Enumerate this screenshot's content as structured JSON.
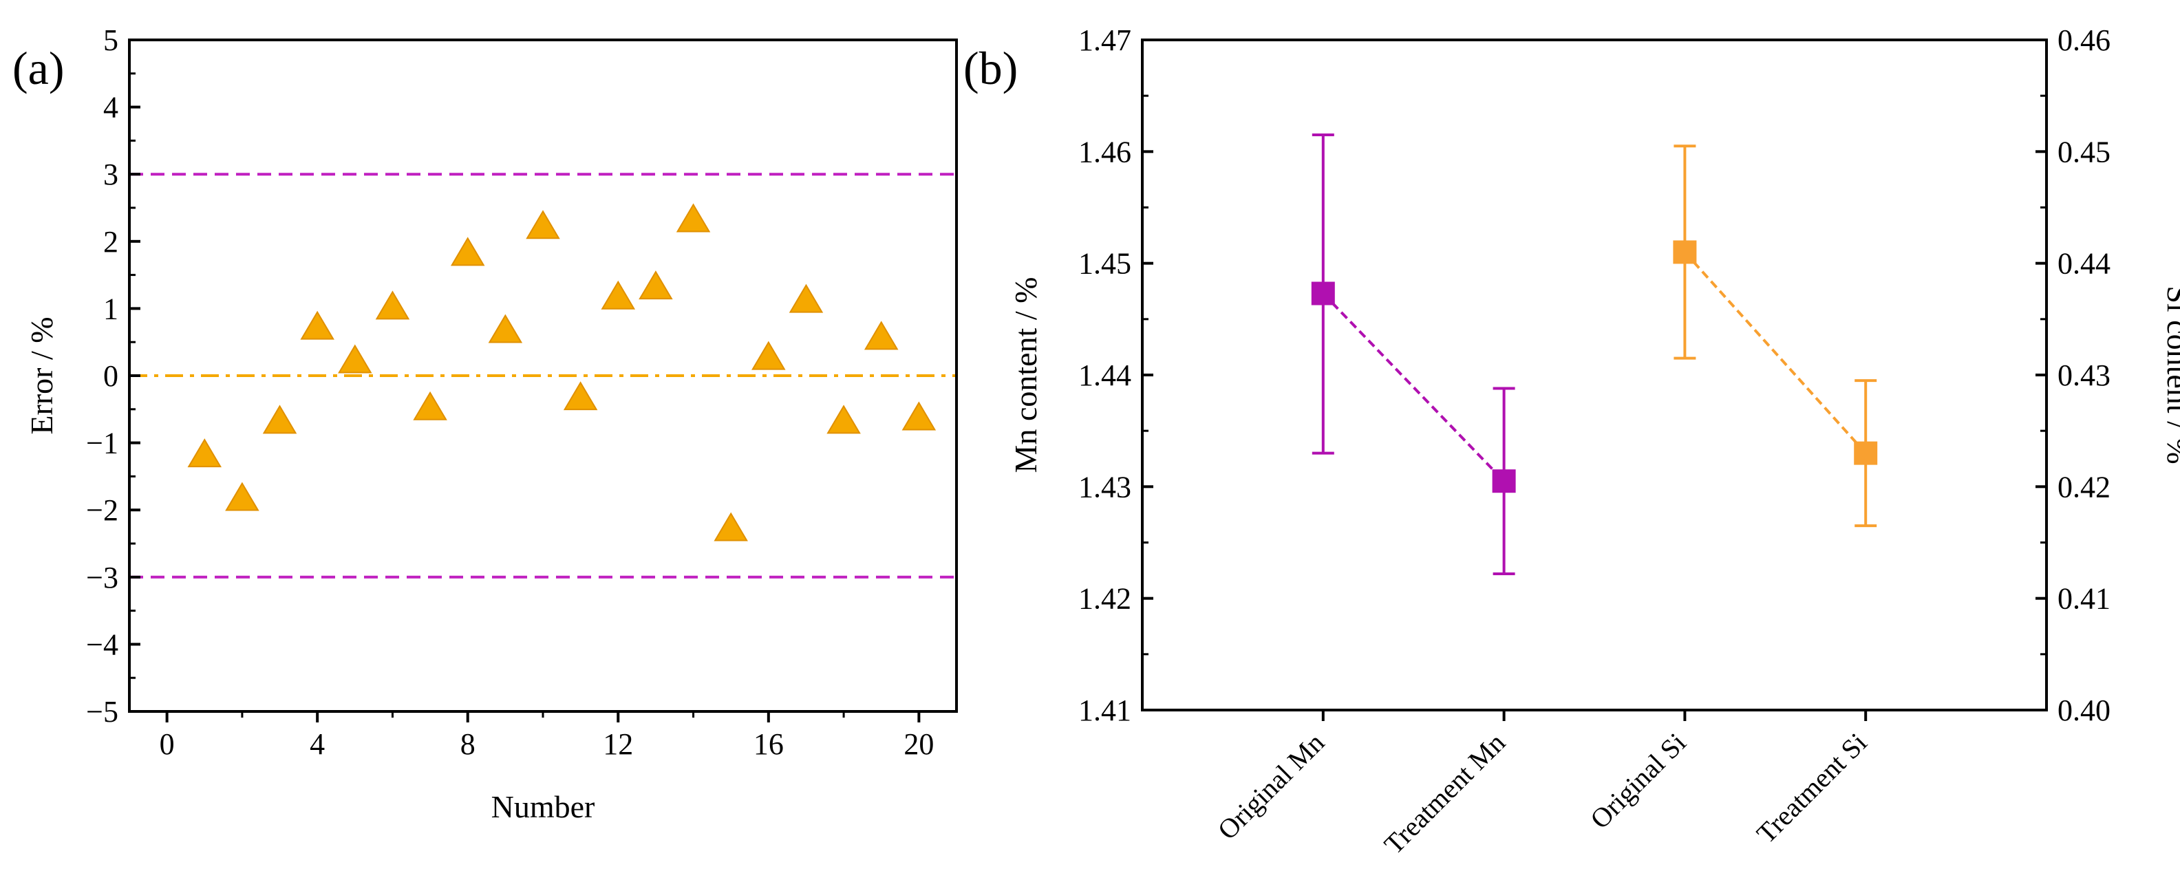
{
  "chart_data": [
    {
      "panel": "(a)",
      "type": "scatter",
      "xlabel": "Number",
      "ylabel": "Error / %",
      "xlim": [
        -1,
        21
      ],
      "ylim": [
        -5,
        5
      ],
      "xticks": [
        0,
        4,
        8,
        12,
        16,
        20
      ],
      "xtick_labels": [
        "0",
        "4",
        "8",
        "12",
        "16",
        "20"
      ],
      "yticks": [
        -5,
        -4,
        -3,
        -2,
        -1,
        0,
        1,
        2,
        3,
        4,
        5
      ],
      "ytick_labels": [
        "−5",
        "−4",
        "−3",
        "−2",
        "−1",
        "0",
        "1",
        "2",
        "3",
        "4",
        "5"
      ],
      "series": [
        {
          "name": "Error",
          "marker": "triangle",
          "color": "#F5A800",
          "x": [
            1,
            2,
            3,
            4,
            5,
            6,
            7,
            8,
            9,
            10,
            11,
            12,
            13,
            14,
            15,
            16,
            17,
            18,
            19,
            20
          ],
          "y": [
            -1.2,
            -1.85,
            -0.7,
            0.7,
            0.2,
            1.0,
            -0.5,
            1.8,
            0.65,
            2.2,
            -0.35,
            1.15,
            1.3,
            2.3,
            -2.3,
            0.25,
            1.1,
            -0.7,
            0.55,
            -0.65
          ]
        }
      ],
      "reference_lines": [
        {
          "name": "upper-limit",
          "y": 3,
          "style": "dashed",
          "color": "#C020C0"
        },
        {
          "name": "zero-line",
          "y": 0,
          "style": "dash-dot",
          "color": "#F5A800"
        },
        {
          "name": "lower-limit",
          "y": -3,
          "style": "dashed",
          "color": "#C020C0"
        }
      ]
    },
    {
      "panel": "(b)",
      "type": "scatter",
      "categories": [
        "Original Mn",
        "Treatment Mn",
        "Original Si",
        "Treatment Si"
      ],
      "ylabel": "Mn content / %",
      "ylabel_right": "Si content / %",
      "ylim": [
        1.41,
        1.47
      ],
      "ylim_right": [
        0.4,
        0.46
      ],
      "yticks": [
        1.41,
        1.42,
        1.43,
        1.44,
        1.45,
        1.46,
        1.47
      ],
      "ytick_labels": [
        "1.41",
        "1.42",
        "1.43",
        "1.44",
        "1.45",
        "1.46",
        "1.47"
      ],
      "yticks_right": [
        0.4,
        0.41,
        0.42,
        0.43,
        0.44,
        0.45,
        0.46
      ],
      "ytick_labels_right": [
        "0.40",
        "0.41",
        "0.42",
        "0.43",
        "0.44",
        "0.45",
        "0.46"
      ],
      "series": [
        {
          "name": "Mn",
          "axis": "left",
          "color": "#B010B0",
          "marker": "square",
          "category_index": [
            0,
            1
          ],
          "values": [
            1.4473,
            1.4305
          ],
          "err_low": [
            1.433,
            1.4222
          ],
          "err_high": [
            1.4615,
            1.4388
          ]
        },
        {
          "name": "Si",
          "axis": "right",
          "color": "#F8A030",
          "marker": "square",
          "category_index": [
            2,
            3
          ],
          "values": [
            0.441,
            0.423
          ],
          "err_low": [
            0.4315,
            0.4165
          ],
          "err_high": [
            0.4505,
            0.4295
          ]
        }
      ]
    }
  ]
}
